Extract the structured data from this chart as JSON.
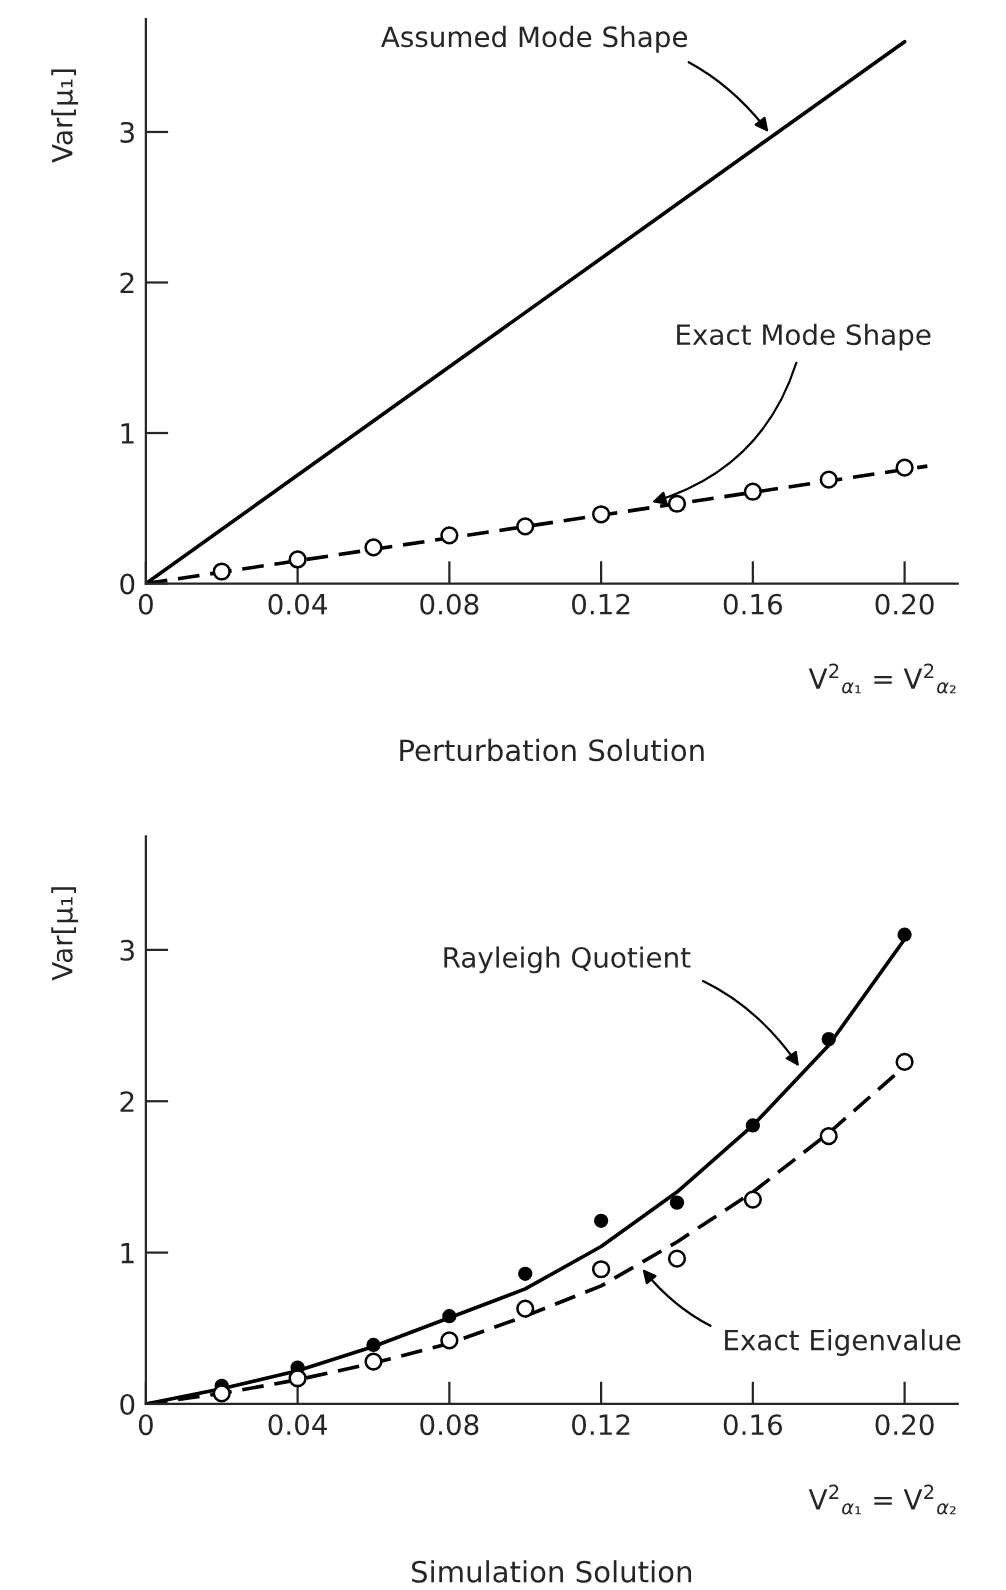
{
  "chart_data": [
    {
      "type": "line",
      "title": "Perturbation Solution",
      "xlabel": "V$^{2}$$_{α₁}$ = V$^{2}$$_{α₂}$",
      "ylabel": "Var[μ₁]",
      "xlim": [
        0,
        0.214
      ],
      "ylim": [
        0,
        3.75
      ],
      "xticks": [
        0,
        0.04,
        0.08,
        0.12,
        0.16,
        {
          "value": 0.2,
          "label": "0.20"
        }
      ],
      "yticks": [
        0,
        1,
        2,
        3
      ],
      "series": [
        {
          "color": "#000000",
          "line_style": "solid",
          "x": [
            0,
            0.2
          ],
          "values": [
            0,
            3.6
          ]
        },
        {
          "color": "#000000",
          "line_style": "dashed",
          "x": [
            0,
            0.206
          ],
          "values": [
            0,
            0.78
          ]
        },
        {
          "type": "scatter",
          "color": "#ffffff",
          "marker": "circle",
          "x": [
            0.02,
            0.04,
            0.06,
            0.08,
            0.1,
            0.12,
            0.14,
            0.16,
            0.18,
            0.2
          ],
          "values": [
            0.08,
            0.16,
            0.24,
            0.32,
            0.38,
            0.46,
            0.53,
            0.61,
            0.69,
            0.77
          ]
        }
      ],
      "annotations": [
        {
          "text": "Assumed Mode Shape",
          "x": 0.165,
          "y": 2.97
        },
        {
          "text": "Exact Mode Shape",
          "x": 0.132,
          "y": 0.53
        }
      ]
    },
    {
      "type": "line",
      "title": "Simulation Solution",
      "xlabel": "V$^{2}$$_{α₁}$ = V$^{2}$$_{α₂}$",
      "ylabel": "Var[μ₁]",
      "xlim": [
        0,
        0.214
      ],
      "ylim": [
        0,
        3.75
      ],
      "xticks": [
        0,
        0.04,
        0.08,
        0.12,
        0.16,
        {
          "value": 0.2,
          "label": "0.20"
        }
      ],
      "yticks": [
        0,
        1,
        2,
        3
      ],
      "series": [
        {
          "color": "#000000",
          "line_style": "solid",
          "x": [
            0,
            0.02,
            0.04,
            0.06,
            0.08,
            0.1,
            0.12,
            0.14,
            0.16,
            0.18,
            0.2
          ],
          "values": [
            0,
            0.1,
            0.22,
            0.38,
            0.57,
            0.76,
            1.04,
            1.4,
            1.84,
            2.37,
            3.07
          ]
        },
        {
          "type": "scatter",
          "color": "#000000",
          "marker": "circle",
          "x": [
            0.02,
            0.04,
            0.06,
            0.08,
            0.1,
            0.12,
            0.14,
            0.16,
            0.18,
            0.2
          ],
          "values": [
            0.12,
            0.24,
            0.39,
            0.58,
            0.86,
            1.21,
            1.33,
            1.84,
            2.41,
            3.1
          ]
        },
        {
          "color": "#000000",
          "line_style": "dashed",
          "x": [
            0,
            0.02,
            0.04,
            0.06,
            0.08,
            0.1,
            0.12,
            0.14,
            0.16,
            0.18,
            0.2
          ],
          "values": [
            0,
            0.07,
            0.16,
            0.27,
            0.4,
            0.58,
            0.78,
            1.07,
            1.4,
            1.79,
            2.23
          ]
        },
        {
          "type": "scatter",
          "color": "#ffffff",
          "marker": "circle",
          "x": [
            0.02,
            0.04,
            0.06,
            0.08,
            0.1,
            0.12,
            0.14,
            0.16,
            0.18,
            0.2
          ],
          "values": [
            0.07,
            0.17,
            0.28,
            0.42,
            0.63,
            0.89,
            0.96,
            1.35,
            1.77,
            2.26
          ]
        }
      ],
      "annotations": [
        {
          "text": "Rayleigh Quotient",
          "x": 0.173,
          "y": 2.2
        },
        {
          "text": "Exact Eigenvalue",
          "x": 0.13,
          "y": 0.92
        }
      ]
    }
  ]
}
